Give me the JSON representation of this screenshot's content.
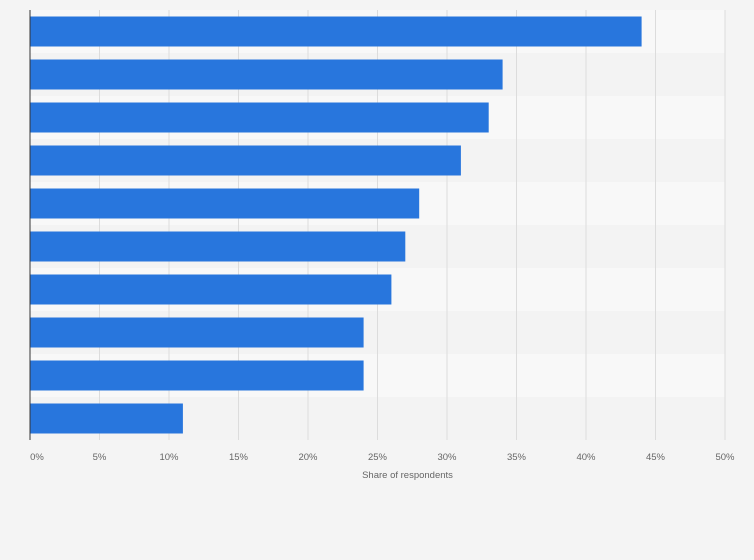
{
  "chart_data": {
    "type": "bar",
    "orientation": "horizontal",
    "title": "",
    "xlabel": "Share of respondents",
    "ylabel": "",
    "categories": [
      "",
      "",
      "",
      "",
      "",
      "",
      "",
      "",
      "",
      ""
    ],
    "values": [
      44,
      34,
      33,
      31,
      28,
      27,
      26,
      24,
      24,
      11
    ],
    "value_unit": "%",
    "xlim": [
      0,
      50
    ],
    "x_ticks": [
      "0%",
      "5%",
      "10%",
      "15%",
      "20%",
      "25%",
      "30%",
      "35%",
      "40%",
      "45%",
      "50%"
    ],
    "grid": "vertical",
    "bar_color": "#2876dd",
    "band_colors": [
      "#f8f8f8",
      "#f3f3f3"
    ]
  }
}
